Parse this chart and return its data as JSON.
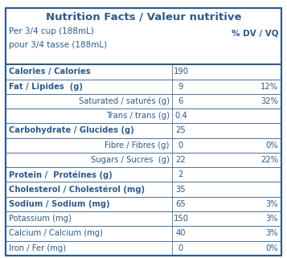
{
  "title": "Nutrition Facts / Valeur nutritive",
  "serving_line1": "Per 3/4 cup (188mL)",
  "serving_line2": "pour 3/4 tasse (188mL)",
  "dv_header": "% DV / VQ",
  "rows": [
    {
      "label": "Calories / Calories",
      "value": "190",
      "dv": "",
      "bold": true,
      "indent": false,
      "shaded": false
    },
    {
      "label": "Fat / Lipides  (g)",
      "value": "9",
      "dv": "12%",
      "bold": true,
      "indent": false,
      "shaded": false
    },
    {
      "label": "Saturated / saturés (g)",
      "value": "6",
      "dv": "32%",
      "bold": false,
      "indent": true,
      "shaded": true
    },
    {
      "label": "Trans / trans (g)",
      "value": "0.4",
      "dv": "",
      "bold": false,
      "indent": true,
      "shaded": true
    },
    {
      "label": "Carbohydrate / Glucides (g)",
      "value": "25",
      "dv": "",
      "bold": true,
      "indent": false,
      "shaded": false
    },
    {
      "label": "Fibre / Fibres (g)",
      "value": "0",
      "dv": "0%",
      "bold": false,
      "indent": true,
      "shaded": true
    },
    {
      "label": "Sugars / Sucres  (g)",
      "value": "22",
      "dv": "22%",
      "bold": false,
      "indent": true,
      "shaded": true
    },
    {
      "label": "Protein /  Protéines (g)",
      "value": "2",
      "dv": "",
      "bold": true,
      "indent": false,
      "shaded": false
    },
    {
      "label": "Cholesterol / Cholestérol (mg)",
      "value": "35",
      "dv": "",
      "bold": true,
      "indent": false,
      "shaded": false
    },
    {
      "label": "Sodium / Sodium (mg)",
      "value": "65",
      "dv": "3%",
      "bold": true,
      "indent": false,
      "shaded": false
    },
    {
      "label": "Potassium (mg)",
      "value": "150",
      "dv": "3%",
      "bold": false,
      "indent": false,
      "shaded": false
    },
    {
      "label": "Calcium / Calcium (mg)",
      "value": "40",
      "dv": "3%",
      "bold": false,
      "indent": false,
      "shaded": false
    },
    {
      "label": "Iron / Fer (mg)",
      "value": "0",
      "dv": "0%",
      "bold": false,
      "indent": false,
      "shaded": false
    }
  ],
  "text_color": "#2E5B8A",
  "border_color": "#2E5B8A",
  "shaded_color": "#E8E8E8",
  "white_color": "#FFFFFF",
  "background_color": "#FFFFFF",
  "title_fontsize": 9.5,
  "serving_fontsize": 7.5,
  "row_fontsize": 7.2,
  "dv_fontsize": 7.5
}
